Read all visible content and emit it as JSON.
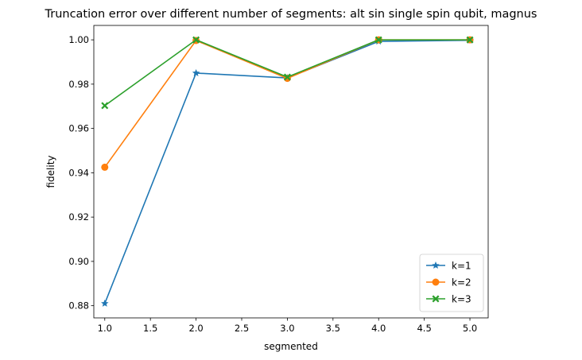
{
  "chart_data": {
    "type": "line",
    "title": "Truncation error over different number of segments: alt sin single spin qubit, magnus",
    "xlabel": "segmented",
    "ylabel": "fidelity",
    "x": [
      1.0,
      2.0,
      3.0,
      4.0,
      5.0
    ],
    "xlim": [
      0.88,
      5.2
    ],
    "ylim": [
      0.8745,
      1.0065
    ],
    "xticks": [
      1.0,
      1.5,
      2.0,
      2.5,
      3.0,
      3.5,
      4.0,
      4.5,
      5.0
    ],
    "xtick_labels": [
      "1.0",
      "1.5",
      "2.0",
      "2.5",
      "3.0",
      "3.5",
      "4.0",
      "4.5",
      "5.0"
    ],
    "yticks": [
      0.88,
      0.9,
      0.92,
      0.94,
      0.96,
      0.98,
      1.0
    ],
    "ytick_labels": [
      "0.88",
      "0.90",
      "0.92",
      "0.94",
      "0.96",
      "0.98",
      "1.00"
    ],
    "grid": false,
    "legend_position": "lower-right",
    "series": [
      {
        "name": "k=1",
        "marker": "star",
        "color": "#1f77b4",
        "values": [
          0.881,
          0.985,
          0.9828,
          0.9993,
          0.9998
        ]
      },
      {
        "name": "k=2",
        "marker": "circle",
        "color": "#ff7f0e",
        "values": [
          0.9425,
          0.9997,
          0.9826,
          1.0,
          1.0
        ]
      },
      {
        "name": "k=3",
        "marker": "x",
        "color": "#2ca02c",
        "values": [
          0.9703,
          1.0,
          0.9832,
          1.0,
          1.0
        ]
      }
    ]
  }
}
